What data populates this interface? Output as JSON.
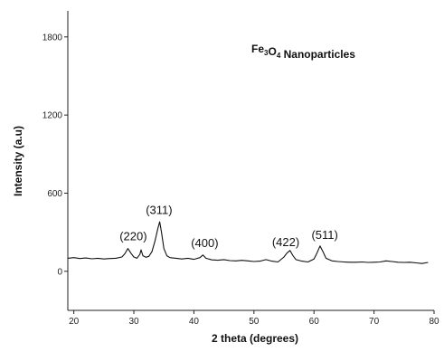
{
  "chart_data": {
    "type": "line",
    "title": {
      "parts": [
        {
          "text": "Fe",
          "sub": false
        },
        {
          "text": "3",
          "sub": true
        },
        {
          "text": "O",
          "sub": false
        },
        {
          "text": "4",
          "sub": true
        },
        {
          "text": " Nanoparticles",
          "sub": false
        }
      ]
    },
    "xlabel": "2 theta (degrees)",
    "ylabel": "Intensity (a.u)",
    "xlim": [
      19,
      80
    ],
    "ylim": [
      -300,
      2000
    ],
    "xticks": [
      20,
      30,
      40,
      50,
      60,
      70,
      80
    ],
    "yticks": [
      0,
      600,
      1200,
      1800
    ],
    "grid": false,
    "line_color": "#111111",
    "series": [
      {
        "x": [
          19,
          20,
          21,
          22,
          23,
          24,
          25,
          26,
          27,
          28,
          28.5,
          29,
          29.5,
          30,
          30.5,
          31,
          31.2,
          31.5,
          32,
          32.5,
          33,
          33.5,
          34,
          34.3,
          34.6,
          35,
          35.5,
          36,
          37,
          38,
          39,
          40,
          41,
          41.5,
          42,
          43,
          44,
          45,
          46,
          47,
          48,
          49,
          50,
          51,
          52,
          53,
          54,
          55,
          55.5,
          56,
          56.5,
          57,
          58,
          59,
          60,
          60.5,
          61,
          61.5,
          62,
          63,
          64,
          65,
          66,
          67,
          68,
          69,
          70,
          71,
          72,
          73,
          74,
          75,
          76,
          77,
          78,
          79
        ],
        "y": [
          100,
          105,
          98,
          102,
          96,
          100,
          95,
          98,
          100,
          110,
          135,
          175,
          140,
          110,
          100,
          130,
          165,
          120,
          108,
          115,
          150,
          230,
          330,
          380,
          300,
          175,
          120,
          105,
          100,
          95,
          100,
          92,
          105,
          125,
          100,
          88,
          85,
          90,
          82,
          80,
          84,
          80,
          75,
          78,
          90,
          78,
          72,
          110,
          140,
          160,
          120,
          90,
          78,
          72,
          95,
          140,
          195,
          150,
          100,
          80,
          75,
          72,
          70,
          70,
          72,
          68,
          70,
          72,
          80,
          75,
          70,
          68,
          70,
          65,
          60,
          68
        ]
      }
    ],
    "annotations": [
      {
        "text": "(220)",
        "x": 29.9,
        "y": 240
      },
      {
        "text": "(311)",
        "x": 34.2,
        "y": 440
      },
      {
        "text": "(400)",
        "x": 41.8,
        "y": 185
      },
      {
        "text": "(422)",
        "x": 55.3,
        "y": 195
      },
      {
        "text": "(511)",
        "x": 61.8,
        "y": 250
      }
    ]
  }
}
